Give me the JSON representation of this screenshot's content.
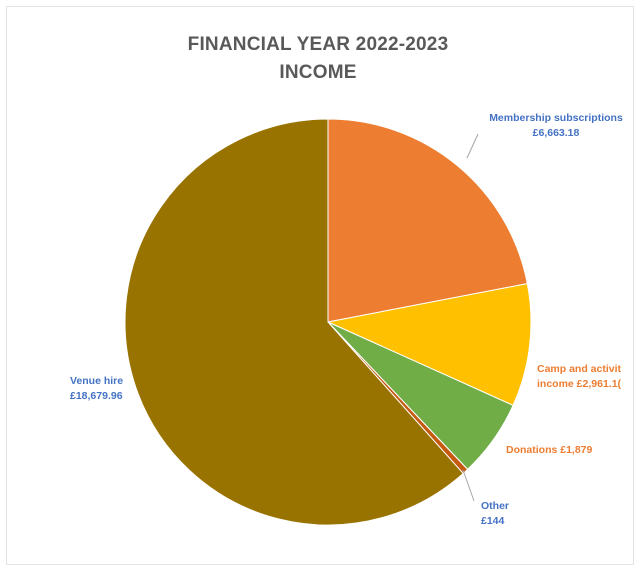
{
  "chart_data": {
    "type": "pie",
    "title_lines": [
      "FINANCIAL YEAR 2022-2023",
      "INCOME"
    ],
    "slices": [
      {
        "name": "Membership subscriptions",
        "value": 6663.18,
        "label_lines": [
          "Membership subscriptions",
          "£6,663.18"
        ],
        "color": "#ED7D31",
        "label_color": "#4472C4"
      },
      {
        "name": "Camp and activity income",
        "value": 2961.1,
        "label_lines": [
          "Camp and activit",
          "income £2,961.1("
        ],
        "color": "#FFC000",
        "label_color": "#ED7D31"
      },
      {
        "name": "Donations",
        "value": 1879,
        "label_lines": [
          "Donations £1,879"
        ],
        "color": "#70AD47",
        "label_color": "#ED7D31"
      },
      {
        "name": "Other",
        "value": 144,
        "label_lines": [
          "Other",
          "£144"
        ],
        "color": "#C55A11",
        "label_color": "#4472C4"
      },
      {
        "name": "Venue hire",
        "value": 18679.96,
        "label_lines": [
          "Venue hire",
          "£18,679.96"
        ],
        "color": "#997300",
        "label_color": "#4472C4"
      }
    ],
    "start_angle": "12 o'clock, clockwise",
    "legend": "none"
  }
}
